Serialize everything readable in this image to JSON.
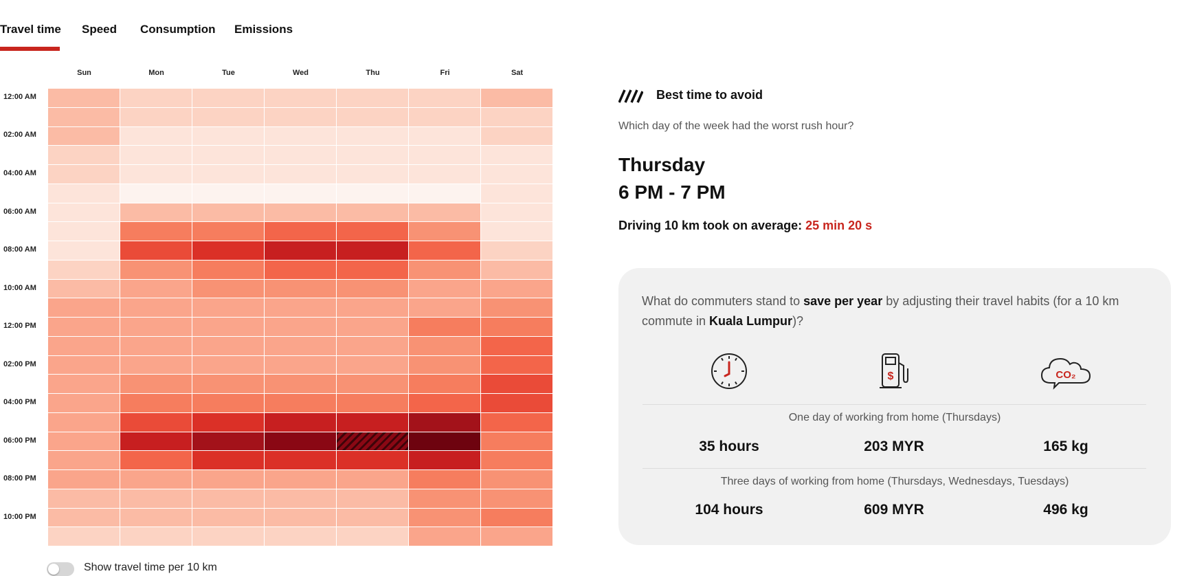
{
  "tabs": [
    {
      "label": "Travel time",
      "active": true
    },
    {
      "label": "Speed",
      "active": false
    },
    {
      "label": "Consumption",
      "active": false
    },
    {
      "label": "Emissions",
      "active": false
    }
  ],
  "heatmap": {
    "days": [
      "Sun",
      "Mon",
      "Tue",
      "Wed",
      "Thu",
      "Fri",
      "Sat"
    ],
    "time_labels": [
      "12:00 AM",
      "02:00 AM",
      "04:00 AM",
      "06:00 AM",
      "08:00 AM",
      "10:00 AM",
      "12:00 PM",
      "02:00 PM",
      "04:00 PM",
      "06:00 PM",
      "08:00 PM",
      "10:00 PM"
    ],
    "color_scale": [
      "#fdf3ef",
      "#fde4da",
      "#fcd3c3",
      "#fbbba5",
      "#faa58b",
      "#f89274",
      "#f67d5e",
      "#f3654a",
      "#ea4b38",
      "#db3027",
      "#c71f20",
      "#a3121a",
      "#8a0814",
      "#6e030f"
    ],
    "best_to_avoid": {
      "day": 4,
      "hour": 18
    },
    "levels": [
      [
        3,
        2,
        2,
        2,
        2,
        2,
        3
      ],
      [
        3,
        2,
        2,
        2,
        2,
        2,
        2
      ],
      [
        3,
        1,
        1,
        1,
        1,
        1,
        2
      ],
      [
        2,
        1,
        1,
        1,
        1,
        1,
        1
      ],
      [
        2,
        1,
        1,
        1,
        1,
        1,
        1
      ],
      [
        1,
        0,
        0,
        0,
        0,
        0,
        1
      ],
      [
        1,
        3,
        3,
        3,
        3,
        3,
        1
      ],
      [
        1,
        6,
        6,
        7,
        7,
        5,
        1
      ],
      [
        1,
        8,
        9,
        10,
        10,
        7,
        2
      ],
      [
        2,
        5,
        6,
        7,
        7,
        5,
        3
      ],
      [
        3,
        4,
        5,
        5,
        5,
        4,
        4
      ],
      [
        4,
        4,
        4,
        4,
        4,
        4,
        5
      ],
      [
        4,
        4,
        4,
        4,
        4,
        6,
        6
      ],
      [
        4,
        4,
        4,
        4,
        4,
        5,
        7
      ],
      [
        4,
        4,
        4,
        4,
        4,
        5,
        7
      ],
      [
        4,
        5,
        5,
        5,
        5,
        6,
        8
      ],
      [
        4,
        6,
        6,
        6,
        6,
        7,
        8
      ],
      [
        4,
        8,
        9,
        10,
        10,
        11,
        7
      ],
      [
        4,
        10,
        11,
        12,
        12,
        13,
        6
      ],
      [
        4,
        7,
        9,
        9,
        9,
        10,
        6
      ],
      [
        4,
        4,
        4,
        4,
        4,
        6,
        5
      ],
      [
        3,
        3,
        3,
        3,
        3,
        5,
        5
      ],
      [
        3,
        3,
        3,
        3,
        3,
        5,
        6
      ],
      [
        2,
        2,
        2,
        2,
        2,
        4,
        4
      ]
    ]
  },
  "toggle": {
    "label": "Show travel time per 10 km",
    "on": false
  },
  "summary": {
    "legend_label": "Best time to avoid",
    "question": "Which day of the week had the worst rush hour?",
    "worst_day": "Thursday",
    "worst_time": "6 PM - 7 PM",
    "avg_prefix": "Driving 10 km took on average:",
    "avg_value": "25 min 20 s"
  },
  "savings": {
    "text_1": "What do commuters stand to ",
    "text_bold_1": "save per year",
    "text_2": " by adjusting their travel habits (for a 10 km commute in ",
    "text_bold_2": "Kuala Lumpur",
    "text_3": ")?",
    "icons": [
      "clock-icon",
      "fuel-pump-icon",
      "co2-cloud-icon"
    ],
    "co2_label": "CO₂",
    "rows": [
      {
        "title": "One day of working from home (Thursdays)",
        "time": "35 hours",
        "money": "203 MYR",
        "emissions": "165 kg"
      },
      {
        "title": "Three days of working from home (Thursdays, Wednesdays, Tuesdays)",
        "time": "104 hours",
        "money": "609 MYR",
        "emissions": "496 kg"
      }
    ]
  },
  "colors": {
    "accent": "#c8261e",
    "card_bg": "#f1f1f1"
  }
}
